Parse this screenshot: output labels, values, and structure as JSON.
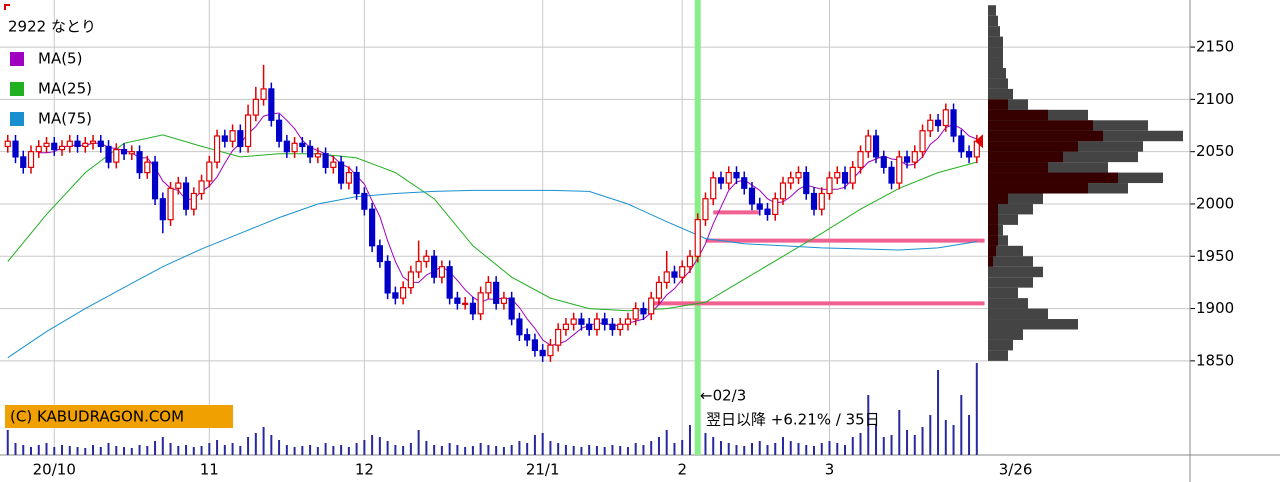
{
  "chart_data": {
    "type": "candlestick",
    "title": "2922 なとり",
    "xlim": [
      -1,
      152.5
    ],
    "xticks": [
      {
        "value": 6,
        "label": "20/10"
      },
      {
        "value": 26,
        "label": "11"
      },
      {
        "value": 46,
        "label": "12"
      },
      {
        "value": 69,
        "label": "21/1"
      },
      {
        "value": 87,
        "label": "2"
      },
      {
        "value": 106,
        "label": "3"
      },
      {
        "value": 130,
        "label": "3/26"
      }
    ],
    "ylim": [
      1760,
      2195
    ],
    "yticks": [
      1850,
      1900,
      1950,
      2000,
      2050,
      2100,
      2150
    ],
    "grid": true,
    "up_color": "#e00000",
    "down_color": "#0000c8",
    "open": [
      2055,
      2060,
      2045,
      2035,
      2050,
      2055,
      2058,
      2052,
      2055,
      2060,
      2055,
      2058,
      2060,
      2055,
      2040,
      2052,
      2048,
      2050,
      2030,
      2040,
      2005,
      1985,
      2015,
      2020,
      1995,
      2010,
      2022,
      2040,
      2065,
      2060,
      2070,
      2055,
      2085,
      2100,
      2110,
      2080,
      2060,
      2050,
      2058,
      2055,
      2045,
      2048,
      2035,
      2040,
      2020,
      2030,
      2010,
      1995,
      1960,
      1945,
      1915,
      1910,
      1920,
      1935,
      1945,
      1950,
      1930,
      1940,
      1910,
      1905,
      1905,
      1895,
      1915,
      1925,
      1905,
      1910,
      1890,
      1875,
      1870,
      1860,
      1855,
      1865,
      1880,
      1885,
      1890,
      1885,
      1880,
      1890,
      1885,
      1880,
      1885,
      1890,
      1900,
      1895,
      1910,
      1925,
      1935,
      1930,
      1940,
      1950,
      1985,
      2005,
      2025,
      2020,
      2030,
      2025,
      2015,
      2000,
      1995,
      1990,
      2005,
      2020,
      2025,
      2030,
      2010,
      1995,
      2010,
      2025,
      2030,
      2020,
      2035,
      2050,
      2065,
      2045,
      2035,
      2020,
      2045,
      2040,
      2050,
      2070,
      2080,
      2075,
      2090,
      2065,
      2050,
      2045
    ],
    "high": [
      2066,
      2066,
      2051,
      2056,
      2061,
      2064,
      2064,
      2061,
      2066,
      2066,
      2064,
      2066,
      2066,
      2061,
      2058,
      2058,
      2056,
      2056,
      2046,
      2046,
      2011,
      2021,
      2026,
      2026,
      2016,
      2028,
      2046,
      2071,
      2071,
      2076,
      2076,
      2095,
      2112,
      2133,
      2116,
      2086,
      2066,
      2064,
      2064,
      2061,
      2054,
      2054,
      2046,
      2046,
      2036,
      2036,
      2016,
      2001,
      1966,
      1951,
      1921,
      1926,
      1941,
      1965,
      1956,
      1956,
      1946,
      1946,
      1916,
      1911,
      1911,
      1921,
      1931,
      1931,
      1916,
      1916,
      1896,
      1881,
      1876,
      1866,
      1871,
      1886,
      1891,
      1896,
      1896,
      1891,
      1896,
      1896,
      1891,
      1891,
      1896,
      1906,
      1906,
      1916,
      1931,
      1955,
      1941,
      1946,
      1956,
      1991,
      2011,
      2031,
      2031,
      2036,
      2036,
      2031,
      2021,
      2006,
      2001,
      2011,
      2026,
      2031,
      2036,
      2036,
      2016,
      2016,
      2031,
      2036,
      2036,
      2041,
      2056,
      2071,
      2071,
      2051,
      2041,
      2051,
      2051,
      2056,
      2076,
      2086,
      2086,
      2096,
      2096,
      2071,
      2056,
      2066
    ],
    "low": [
      2049,
      2039,
      2029,
      2029,
      2044,
      2049,
      2046,
      2046,
      2049,
      2049,
      2049,
      2052,
      2049,
      2034,
      2034,
      2042,
      2042,
      2024,
      2024,
      1999,
      1972,
      1979,
      2009,
      1989,
      1989,
      2004,
      2016,
      2034,
      2054,
      2054,
      2049,
      2049,
      2079,
      2094,
      2074,
      2054,
      2044,
      2044,
      2049,
      2039,
      2039,
      2029,
      2029,
      2014,
      2014,
      2004,
      1989,
      1954,
      1939,
      1909,
      1904,
      1904,
      1914,
      1929,
      1939,
      1924,
      1924,
      1904,
      1899,
      1899,
      1889,
      1889,
      1909,
      1899,
      1899,
      1884,
      1869,
      1864,
      1854,
      1849,
      1849,
      1859,
      1874,
      1879,
      1879,
      1874,
      1874,
      1879,
      1874,
      1874,
      1879,
      1884,
      1889,
      1889,
      1904,
      1919,
      1924,
      1924,
      1934,
      1944,
      1979,
      1999,
      2014,
      2014,
      2019,
      2009,
      1994,
      1989,
      1984,
      1984,
      1999,
      2014,
      2019,
      2004,
      1989,
      1989,
      2004,
      2019,
      2014,
      2014,
      2029,
      2044,
      2039,
      2029,
      2014,
      2014,
      2034,
      2034,
      2044,
      2064,
      2069,
      2069,
      2059,
      2044,
      2039,
      2039
    ],
    "close": [
      2060,
      2045,
      2035,
      2050,
      2055,
      2058,
      2052,
      2055,
      2060,
      2055,
      2058,
      2060,
      2055,
      2040,
      2052,
      2048,
      2050,
      2030,
      2040,
      2005,
      1985,
      2015,
      2020,
      1995,
      2010,
      2022,
      2040,
      2065,
      2060,
      2070,
      2055,
      2085,
      2100,
      2110,
      2080,
      2060,
      2050,
      2058,
      2055,
      2045,
      2048,
      2035,
      2040,
      2020,
      2030,
      2010,
      1995,
      1960,
      1945,
      1915,
      1910,
      1920,
      1935,
      1945,
      1950,
      1930,
      1940,
      1910,
      1905,
      1905,
      1895,
      1915,
      1925,
      1905,
      1910,
      1890,
      1875,
      1870,
      1860,
      1855,
      1865,
      1880,
      1885,
      1890,
      1885,
      1880,
      1890,
      1885,
      1880,
      1885,
      1890,
      1900,
      1895,
      1910,
      1925,
      1935,
      1930,
      1940,
      1950,
      1985,
      2005,
      2025,
      2020,
      2030,
      2025,
      2015,
      2000,
      1995,
      1990,
      2005,
      2020,
      2025,
      2030,
      2010,
      1995,
      2010,
      2025,
      2030,
      2020,
      2035,
      2050,
      2065,
      2045,
      2035,
      2020,
      2045,
      2040,
      2050,
      2070,
      2080,
      2075,
      2090,
      2065,
      2050,
      2045,
      2060
    ],
    "lines": [
      {
        "name": "MA(5)",
        "color": "#a000c0",
        "values": [
          null,
          null,
          null,
          null,
          2049,
          2049,
          2050,
          2054,
          2056,
          2056,
          2056,
          2058,
          2058,
          2054,
          2053,
          2051,
          2049,
          2044,
          2044,
          2035,
          2022,
          2015,
          2013,
          2004,
          2005,
          2012,
          2017,
          2026,
          2039,
          2051,
          2058,
          2067,
          2074,
          2084,
          2086,
          2087,
          2080,
          2072,
          2061,
          2054,
          2051,
          2048,
          2045,
          2038,
          2035,
          2027,
          2019,
          2003,
          1988,
          1965,
          1945,
          1930,
          1925,
          1925,
          1932,
          1936,
          1940,
          1935,
          1927,
          1918,
          1911,
          1906,
          1909,
          1909,
          1910,
          1909,
          1901,
          1890,
          1881,
          1870,
          1865,
          1866,
          1869,
          1875,
          1881,
          1884,
          1886,
          1886,
          1884,
          1884,
          1886,
          1888,
          1890,
          1896,
          1904,
          1913,
          1919,
          1928,
          1936,
          1948,
          1962,
          1981,
          1997,
          2013,
          2021,
          2023,
          2018,
          2013,
          2005,
          2001,
          2002,
          2007,
          2014,
          2018,
          2016,
          2014,
          2014,
          2014,
          2016,
          2024,
          2032,
          2040,
          2043,
          2046,
          2043,
          2042,
          2037,
          2038,
          2045,
          2057,
          2063,
          2073,
          2076,
          2072,
          2065,
          2062
        ]
      },
      {
        "name": "MA(25)",
        "color": "#20b020",
        "x": [
          0,
          5,
          10,
          15,
          20,
          25,
          30,
          35,
          40,
          45,
          50,
          55,
          60,
          65,
          70,
          75,
          80,
          85,
          90,
          95,
          100,
          105,
          110,
          115,
          120,
          125
        ],
        "values": [
          1945,
          1990,
          2030,
          2058,
          2066,
          2055,
          2045,
          2048,
          2048,
          2044,
          2030,
          2005,
          1960,
          1930,
          1910,
          1900,
          1898,
          1900,
          1906,
          1928,
          1950,
          1972,
          1995,
          2015,
          2030,
          2040
        ]
      },
      {
        "name": "MA(75)",
        "color": "#1890d0",
        "x": [
          0,
          5,
          10,
          15,
          20,
          25,
          30,
          35,
          40,
          45,
          50,
          55,
          60,
          65,
          70,
          75,
          80,
          85,
          90,
          95,
          100,
          105,
          110,
          115,
          120,
          125
        ],
        "values": [
          1853,
          1878,
          1900,
          1920,
          1940,
          1957,
          1972,
          1987,
          2000,
          2007,
          2010,
          2012,
          2013,
          2013,
          2013,
          2012,
          2000,
          1983,
          1967,
          1962,
          1960,
          1958,
          1957,
          1956,
          1958,
          1964
        ]
      }
    ],
    "volume": {
      "color": "#2828a0",
      "ylim": [
        0,
        100
      ],
      "values": [
        25,
        12,
        10,
        8,
        10,
        12,
        8,
        10,
        9,
        8,
        7,
        10,
        8,
        12,
        9,
        8,
        7,
        10,
        9,
        14,
        18,
        12,
        9,
        10,
        8,
        9,
        12,
        15,
        10,
        12,
        9,
        18,
        22,
        28,
        20,
        15,
        10,
        8,
        9,
        10,
        8,
        12,
        9,
        10,
        8,
        12,
        15,
        20,
        18,
        14,
        10,
        9,
        12,
        25,
        14,
        10,
        9,
        12,
        10,
        8,
        9,
        12,
        10,
        9,
        8,
        10,
        14,
        12,
        20,
        22,
        14,
        12,
        10,
        9,
        8,
        10,
        9,
        8,
        10,
        9,
        8,
        12,
        10,
        14,
        18,
        25,
        12,
        15,
        30,
        28,
        22,
        18,
        14,
        12,
        10,
        9,
        12,
        14,
        10,
        12,
        18,
        14,
        12,
        10,
        9,
        12,
        14,
        12,
        10,
        18,
        22,
        60,
        30,
        18,
        20,
        45,
        25,
        20,
        28,
        40,
        85,
        35,
        30,
        60,
        40,
        92
      ]
    },
    "levels": [
      {
        "value": 1992,
        "start": 91,
        "end": 97
      },
      {
        "value": 1965,
        "start": 90,
        "end": 126
      },
      {
        "value": 1905,
        "start": 83,
        "end": 126
      }
    ],
    "level_color": "#f06090",
    "event": {
      "x": 89,
      "color": "#88ee88"
    },
    "annotations": [
      "←02/3",
      "翌日以降 +6.21% / 35日"
    ],
    "copyright": "(C) KABUDRAGON.COM",
    "volume_profile": {
      "xlim": [
        0,
        200
      ],
      "bins": [
        1850,
        1860,
        1870,
        1880,
        1890,
        1900,
        1910,
        1920,
        1930,
        1940,
        1950,
        1960,
        1970,
        1980,
        1990,
        2000,
        2010,
        2020,
        2030,
        2040,
        2050,
        2060,
        2070,
        2080,
        2090,
        2100,
        2110,
        2120,
        2130,
        2140,
        2150,
        2160,
        2170,
        2180,
        2190
      ],
      "series": [
        {
          "color": "#444444",
          "values": [
            20,
            25,
            35,
            90,
            60,
            40,
            30,
            45,
            55,
            45,
            35,
            20,
            15,
            30,
            45,
            55,
            140,
            175,
            120,
            150,
            155,
            195,
            160,
            100,
            40,
            25,
            20,
            18,
            15,
            15,
            15,
            12,
            10,
            8
          ]
        },
        {
          "color": "#360000",
          "values": [
            0,
            0,
            0,
            0,
            0,
            0,
            0,
            0,
            0,
            5,
            8,
            10,
            10,
            10,
            10,
            20,
            100,
            130,
            60,
            75,
            90,
            115,
            105,
            60,
            20,
            0,
            0,
            0,
            0,
            0,
            0,
            0,
            0,
            0
          ]
        }
      ]
    },
    "last_marker_color": "#e00000"
  }
}
